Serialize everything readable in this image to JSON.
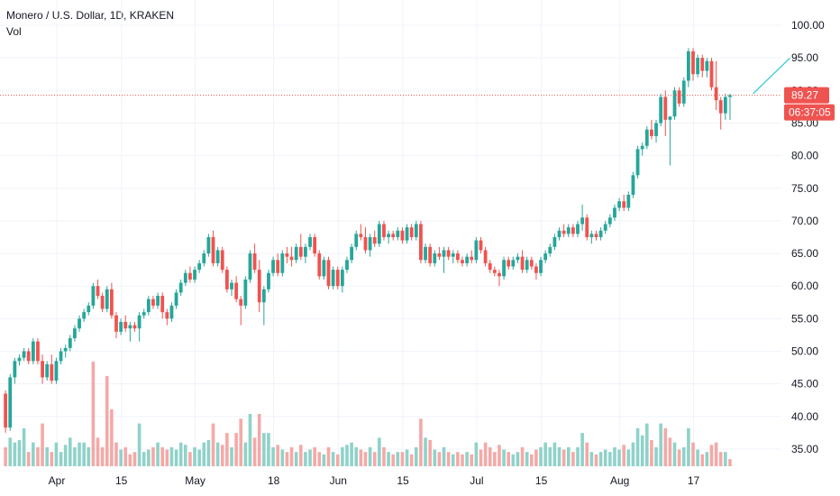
{
  "header": {
    "title": "Monero / U.S. Dollar, 1D, KRAKEN",
    "volume_label": "Vol"
  },
  "colors": {
    "up": "#26a69a",
    "down": "#ef5350",
    "vol_up": "#8fd2c9",
    "vol_down": "#f4a9a7",
    "grid": "#f0f3fa",
    "price_line": "#ef5350",
    "trend_line": "#2fc5da"
  },
  "price_tag": {
    "value": "89.27",
    "countdown": "06:37:05"
  },
  "chart_data": {
    "type": "candlestick",
    "title": "Monero / U.S. Dollar, 1D, KRAKEN",
    "ylim": [
      32,
      101
    ],
    "y_ticks": [
      "100.00",
      "95.00",
      "90.00",
      "85.00",
      "80.00",
      "75.00",
      "70.00",
      "65.00",
      "60.00",
      "55.00",
      "50.00",
      "45.00",
      "40.00",
      "35.00"
    ],
    "x_ticks": [
      "Apr",
      "15",
      "May",
      "18",
      "Jun",
      "15",
      "Jul",
      "15",
      "Aug",
      "17"
    ],
    "grid": true,
    "ohlc_first_day": 1,
    "ohlc": [
      [
        43.5,
        44.0,
        37.5,
        38.3
      ],
      [
        38.3,
        46.5,
        37.8,
        46.0
      ],
      [
        46.0,
        49.0,
        45.0,
        48.5
      ],
      [
        48.5,
        49.5,
        47.8,
        49.0
      ],
      [
        49.0,
        50.5,
        48.5,
        50.0
      ],
      [
        50.0,
        50.5,
        48.0,
        48.5
      ],
      [
        48.5,
        52.0,
        48.0,
        51.5
      ],
      [
        51.5,
        52.0,
        48.0,
        48.5
      ],
      [
        48.5,
        49.5,
        45.0,
        46.0
      ],
      [
        46.0,
        48.5,
        45.5,
        48.0
      ],
      [
        48.0,
        49.5,
        45.0,
        45.5
      ],
      [
        45.5,
        49.0,
        45.0,
        48.5
      ],
      [
        48.5,
        50.5,
        48.0,
        50.0
      ],
      [
        50.0,
        51.0,
        49.0,
        50.5
      ],
      [
        50.5,
        52.5,
        50.0,
        52.0
      ],
      [
        52.0,
        54.0,
        51.5,
        53.5
      ],
      [
        53.5,
        55.5,
        53.0,
        55.0
      ],
      [
        55.0,
        56.5,
        54.5,
        56.0
      ],
      [
        56.0,
        57.5,
        55.5,
        57.0
      ],
      [
        57.0,
        60.5,
        56.5,
        60.0
      ],
      [
        60.0,
        61.0,
        58.0,
        58.5
      ],
      [
        58.5,
        59.0,
        56.0,
        56.5
      ],
      [
        56.5,
        60.0,
        56.0,
        59.5
      ],
      [
        59.5,
        60.5,
        55.0,
        55.5
      ],
      [
        55.5,
        56.0,
        52.0,
        53.0
      ],
      [
        53.0,
        55.0,
        52.5,
        54.5
      ],
      [
        54.5,
        55.5,
        53.0,
        53.5
      ],
      [
        53.5,
        54.5,
        51.5,
        54.0
      ],
      [
        54.0,
        54.5,
        53.0,
        53.5
      ],
      [
        53.5,
        56.0,
        51.5,
        55.5
      ],
      [
        55.5,
        56.5,
        55.0,
        56.0
      ],
      [
        56.0,
        58.5,
        55.5,
        58.0
      ],
      [
        58.0,
        58.5,
        56.5,
        57.0
      ],
      [
        57.0,
        59.0,
        56.5,
        58.5
      ],
      [
        58.5,
        59.0,
        55.0,
        56.0
      ],
      [
        56.0,
        56.5,
        54.0,
        55.0
      ],
      [
        55.0,
        57.5,
        54.5,
        57.0
      ],
      [
        57.0,
        59.5,
        56.5,
        59.0
      ],
      [
        59.0,
        61.0,
        58.5,
        60.5
      ],
      [
        60.5,
        62.5,
        60.0,
        62.0
      ],
      [
        62.0,
        63.0,
        60.5,
        61.0
      ],
      [
        61.0,
        63.0,
        60.5,
        62.5
      ],
      [
        62.5,
        64.0,
        62.0,
        63.5
      ],
      [
        63.5,
        65.5,
        63.0,
        65.0
      ],
      [
        65.0,
        68.0,
        64.5,
        67.5
      ],
      [
        67.5,
        68.5,
        63.0,
        63.5
      ],
      [
        63.5,
        66.0,
        63.0,
        65.5
      ],
      [
        65.5,
        66.0,
        62.0,
        62.5
      ],
      [
        62.5,
        63.0,
        59.0,
        59.5
      ],
      [
        59.5,
        61.0,
        58.5,
        60.5
      ],
      [
        60.5,
        61.5,
        57.5,
        58.0
      ],
      [
        58.0,
        58.5,
        54.0,
        57.0
      ],
      [
        57.0,
        61.5,
        56.5,
        61.0
      ],
      [
        61.0,
        65.5,
        60.5,
        65.0
      ],
      [
        65.0,
        66.5,
        62.0,
        62.5
      ],
      [
        62.5,
        64.0,
        56.0,
        57.5
      ],
      [
        57.5,
        60.0,
        54.0,
        59.5
      ],
      [
        59.5,
        62.5,
        59.0,
        62.0
      ],
      [
        62.0,
        64.5,
        61.5,
        64.0
      ],
      [
        64.0,
        65.0,
        61.5,
        62.0
      ],
      [
        62.0,
        65.5,
        61.5,
        65.0
      ],
      [
        65.0,
        66.0,
        63.5,
        64.5
      ],
      [
        64.5,
        66.0,
        63.0,
        64.0
      ],
      [
        64.0,
        66.5,
        63.5,
        66.0
      ],
      [
        66.0,
        68.0,
        64.0,
        64.5
      ],
      [
        64.5,
        66.5,
        63.5,
        66.0
      ],
      [
        66.0,
        68.0,
        65.5,
        67.5
      ],
      [
        67.5,
        68.0,
        64.5,
        65.0
      ],
      [
        65.0,
        65.5,
        61.0,
        61.5
      ],
      [
        61.5,
        64.5,
        61.0,
        64.0
      ],
      [
        64.0,
        64.5,
        59.5,
        60.0
      ],
      [
        60.0,
        63.0,
        59.5,
        62.5
      ],
      [
        62.5,
        63.0,
        59.5,
        60.0
      ],
      [
        60.0,
        63.0,
        59.0,
        62.5
      ],
      [
        62.5,
        64.5,
        62.0,
        64.0
      ],
      [
        64.0,
        66.5,
        63.5,
        66.0
      ],
      [
        66.0,
        68.5,
        65.5,
        68.0
      ],
      [
        68.0,
        69.5,
        67.0,
        67.5
      ],
      [
        67.5,
        69.0,
        65.0,
        65.5
      ],
      [
        65.5,
        68.0,
        64.5,
        67.5
      ],
      [
        67.5,
        68.5,
        66.0,
        66.5
      ],
      [
        66.5,
        70.0,
        66.0,
        69.5
      ],
      [
        69.5,
        70.0,
        67.0,
        67.5
      ],
      [
        67.5,
        68.5,
        66.5,
        68.0
      ],
      [
        68.0,
        68.5,
        67.0,
        67.5
      ],
      [
        67.5,
        69.0,
        67.0,
        68.5
      ],
      [
        68.5,
        69.0,
        66.5,
        67.0
      ],
      [
        67.0,
        69.5,
        66.5,
        69.0
      ],
      [
        69.0,
        69.5,
        67.0,
        67.5
      ],
      [
        67.5,
        70.0,
        67.0,
        69.5
      ],
      [
        69.5,
        70.0,
        63.5,
        64.0
      ],
      [
        64.0,
        66.5,
        63.5,
        66.0
      ],
      [
        66.0,
        66.5,
        63.0,
        63.5
      ],
      [
        63.5,
        65.5,
        63.0,
        65.0
      ],
      [
        65.0,
        66.0,
        64.0,
        64.5
      ],
      [
        64.5,
        66.0,
        62.0,
        65.5
      ],
      [
        65.5,
        66.0,
        64.0,
        64.5
      ],
      [
        64.5,
        65.5,
        63.5,
        65.0
      ],
      [
        65.0,
        65.5,
        63.5,
        64.0
      ],
      [
        64.0,
        64.5,
        63.0,
        63.5
      ],
      [
        63.5,
        65.0,
        63.0,
        64.5
      ],
      [
        64.5,
        65.5,
        63.5,
        64.0
      ],
      [
        64.0,
        67.5,
        63.5,
        67.0
      ],
      [
        67.0,
        67.5,
        65.0,
        65.5
      ],
      [
        65.5,
        66.0,
        63.0,
        63.5
      ],
      [
        63.5,
        64.0,
        62.0,
        62.5
      ],
      [
        62.5,
        63.0,
        61.5,
        62.0
      ],
      [
        62.0,
        62.5,
        60.0,
        61.5
      ],
      [
        61.5,
        64.5,
        61.0,
        64.0
      ],
      [
        64.0,
        64.5,
        62.5,
        63.0
      ],
      [
        63.0,
        64.5,
        62.5,
        64.0
      ],
      [
        64.0,
        65.0,
        63.5,
        64.5
      ],
      [
        64.5,
        65.5,
        62.0,
        62.5
      ],
      [
        62.5,
        64.5,
        62.0,
        64.0
      ],
      [
        64.0,
        64.5,
        62.5,
        63.0
      ],
      [
        63.0,
        63.5,
        61.0,
        62.0
      ],
      [
        62.0,
        64.5,
        61.5,
        64.0
      ],
      [
        64.0,
        65.5,
        63.5,
        65.0
      ],
      [
        65.0,
        66.5,
        64.5,
        66.0
      ],
      [
        66.0,
        68.0,
        65.5,
        67.5
      ],
      [
        67.5,
        69.0,
        67.0,
        68.5
      ],
      [
        68.5,
        69.5,
        67.5,
        68.0
      ],
      [
        68.0,
        69.5,
        67.5,
        69.0
      ],
      [
        69.0,
        69.5,
        67.5,
        68.0
      ],
      [
        68.0,
        70.0,
        67.5,
        69.5
      ],
      [
        69.5,
        72.5,
        68.5,
        70.5
      ],
      [
        70.5,
        71.0,
        67.0,
        67.5
      ],
      [
        67.5,
        68.5,
        66.5,
        68.0
      ],
      [
        68.0,
        68.5,
        67.0,
        67.5
      ],
      [
        67.5,
        69.0,
        67.0,
        68.5
      ],
      [
        68.5,
        70.0,
        68.0,
        69.5
      ],
      [
        69.5,
        71.0,
        69.0,
        70.5
      ],
      [
        70.5,
        72.5,
        70.0,
        72.0
      ],
      [
        72.0,
        73.5,
        71.5,
        73.0
      ],
      [
        73.0,
        74.0,
        71.5,
        72.0
      ],
      [
        72.0,
        74.5,
        71.5,
        74.0
      ],
      [
        74.0,
        77.5,
        73.5,
        77.0
      ],
      [
        77.0,
        81.5,
        76.5,
        81.0
      ],
      [
        81.0,
        82.0,
        80.0,
        81.5
      ],
      [
        81.5,
        84.5,
        81.0,
        84.0
      ],
      [
        84.0,
        85.5,
        82.5,
        83.0
      ],
      [
        83.0,
        85.5,
        82.0,
        85.0
      ],
      [
        85.0,
        89.5,
        84.5,
        89.0
      ],
      [
        89.0,
        90.0,
        83.0,
        85.5
      ],
      [
        85.5,
        86.0,
        78.5,
        86.0
      ],
      [
        86.0,
        90.5,
        85.5,
        90.0
      ],
      [
        90.0,
        90.5,
        87.5,
        88.0
      ],
      [
        88.0,
        92.0,
        87.5,
        91.5
      ],
      [
        91.5,
        96.5,
        90.5,
        96.0
      ],
      [
        96.0,
        96.5,
        91.5,
        92.5
      ],
      [
        92.5,
        95.5,
        92.0,
        95.0
      ],
      [
        95.0,
        95.5,
        92.0,
        93.0
      ],
      [
        93.0,
        95.0,
        92.0,
        94.5
      ],
      [
        94.5,
        95.0,
        90.0,
        90.5
      ],
      [
        90.5,
        94.5,
        87.0,
        88.5
      ],
      [
        88.5,
        89.0,
        84.0,
        86.5
      ],
      [
        86.5,
        89.5,
        85.5,
        89.0
      ],
      [
        89.0,
        89.5,
        85.5,
        89.27
      ]
    ],
    "volume": [
      [
        4,
        "down"
      ],
      [
        6,
        "up"
      ],
      [
        5,
        "up"
      ],
      [
        5.5,
        "up"
      ],
      [
        8,
        "up"
      ],
      [
        3,
        "down"
      ],
      [
        5,
        "up"
      ],
      [
        4,
        "down"
      ],
      [
        9,
        "down"
      ],
      [
        4,
        "up"
      ],
      [
        3,
        "down"
      ],
      [
        5,
        "up"
      ],
      [
        3,
        "up"
      ],
      [
        4.5,
        "up"
      ],
      [
        6,
        "up"
      ],
      [
        4,
        "up"
      ],
      [
        5,
        "up"
      ],
      [
        5,
        "up"
      ],
      [
        4,
        "up"
      ],
      [
        22,
        "down"
      ],
      [
        6,
        "down"
      ],
      [
        4,
        "down"
      ],
      [
        19,
        "down"
      ],
      [
        12,
        "down"
      ],
      [
        5,
        "down"
      ],
      [
        3.5,
        "up"
      ],
      [
        4,
        "down"
      ],
      [
        2.5,
        "down"
      ],
      [
        3,
        "down"
      ],
      [
        9,
        "up"
      ],
      [
        3,
        "up"
      ],
      [
        3.5,
        "up"
      ],
      [
        4,
        "down"
      ],
      [
        5,
        "up"
      ],
      [
        4,
        "down"
      ],
      [
        3.5,
        "down"
      ],
      [
        4,
        "up"
      ],
      [
        3.5,
        "up"
      ],
      [
        5,
        "up"
      ],
      [
        4.5,
        "up"
      ],
      [
        3,
        "down"
      ],
      [
        4,
        "up"
      ],
      [
        3.5,
        "up"
      ],
      [
        5,
        "up"
      ],
      [
        5.5,
        "up"
      ],
      [
        9,
        "down"
      ],
      [
        5,
        "up"
      ],
      [
        4.5,
        "down"
      ],
      [
        7,
        "down"
      ],
      [
        4,
        "up"
      ],
      [
        7,
        "down"
      ],
      [
        10,
        "down"
      ],
      [
        5,
        "up"
      ],
      [
        11,
        "up"
      ],
      [
        6,
        "down"
      ],
      [
        11,
        "down"
      ],
      [
        7,
        "up"
      ],
      [
        7,
        "up"
      ],
      [
        4,
        "up"
      ],
      [
        4.5,
        "down"
      ],
      [
        3.5,
        "up"
      ],
      [
        3,
        "down"
      ],
      [
        4,
        "down"
      ],
      [
        3,
        "up"
      ],
      [
        4.5,
        "down"
      ],
      [
        3,
        "up"
      ],
      [
        3.5,
        "up"
      ],
      [
        4,
        "down"
      ],
      [
        3,
        "down"
      ],
      [
        2.5,
        "up"
      ],
      [
        4,
        "down"
      ],
      [
        3,
        "up"
      ],
      [
        2.5,
        "down"
      ],
      [
        4,
        "up"
      ],
      [
        4.5,
        "up"
      ],
      [
        5,
        "up"
      ],
      [
        4,
        "up"
      ],
      [
        3.5,
        "down"
      ],
      [
        3,
        "down"
      ],
      [
        4,
        "up"
      ],
      [
        3,
        "down"
      ],
      [
        6,
        "up"
      ],
      [
        4,
        "down"
      ],
      [
        3,
        "up"
      ],
      [
        2.5,
        "down"
      ],
      [
        3,
        "up"
      ],
      [
        3,
        "down"
      ],
      [
        3.5,
        "up"
      ],
      [
        2.5,
        "down"
      ],
      [
        4,
        "up"
      ],
      [
        10,
        "down"
      ],
      [
        6,
        "up"
      ],
      [
        5.5,
        "down"
      ],
      [
        3.5,
        "up"
      ],
      [
        3,
        "down"
      ],
      [
        4,
        "up"
      ],
      [
        3,
        "down"
      ],
      [
        2.5,
        "up"
      ],
      [
        3,
        "down"
      ],
      [
        2.5,
        "down"
      ],
      [
        3,
        "up"
      ],
      [
        2.5,
        "down"
      ],
      [
        5,
        "up"
      ],
      [
        3.5,
        "down"
      ],
      [
        5,
        "down"
      ],
      [
        4,
        "down"
      ],
      [
        3,
        "down"
      ],
      [
        4.5,
        "down"
      ],
      [
        3.5,
        "up"
      ],
      [
        3,
        "down"
      ],
      [
        2.5,
        "up"
      ],
      [
        3,
        "up"
      ],
      [
        4,
        "down"
      ],
      [
        3,
        "up"
      ],
      [
        2.5,
        "down"
      ],
      [
        3.5,
        "down"
      ],
      [
        4,
        "up"
      ],
      [
        5,
        "up"
      ],
      [
        4,
        "up"
      ],
      [
        5,
        "up"
      ],
      [
        4,
        "up"
      ],
      [
        3.5,
        "down"
      ],
      [
        4,
        "up"
      ],
      [
        3,
        "down"
      ],
      [
        4,
        "up"
      ],
      [
        7,
        "up"
      ],
      [
        5,
        "down"
      ],
      [
        3,
        "up"
      ],
      [
        2.5,
        "down"
      ],
      [
        3,
        "up"
      ],
      [
        3.5,
        "up"
      ],
      [
        3,
        "up"
      ],
      [
        4,
        "up"
      ],
      [
        3.5,
        "up"
      ],
      [
        4.5,
        "down"
      ],
      [
        3.5,
        "up"
      ],
      [
        5,
        "up"
      ],
      [
        8,
        "up"
      ],
      [
        6.5,
        "up"
      ],
      [
        9,
        "up"
      ],
      [
        5.5,
        "down"
      ],
      [
        4,
        "up"
      ],
      [
        9,
        "up"
      ],
      [
        8,
        "down"
      ],
      [
        6,
        "down"
      ],
      [
        5,
        "up"
      ],
      [
        3.5,
        "down"
      ],
      [
        4,
        "up"
      ],
      [
        8,
        "up"
      ],
      [
        5,
        "down"
      ],
      [
        3.5,
        "up"
      ],
      [
        2.5,
        "down"
      ],
      [
        3,
        "up"
      ],
      [
        4.5,
        "down"
      ],
      [
        5,
        "down"
      ],
      [
        3,
        "down"
      ],
      [
        3,
        "up"
      ],
      [
        1.5,
        "down"
      ]
    ],
    "volume_ylim": [
      0,
      26
    ],
    "trend_line": [
      [
        163,
        89.5
      ],
      [
        171,
        95.0
      ]
    ],
    "last_price": 89.27
  }
}
